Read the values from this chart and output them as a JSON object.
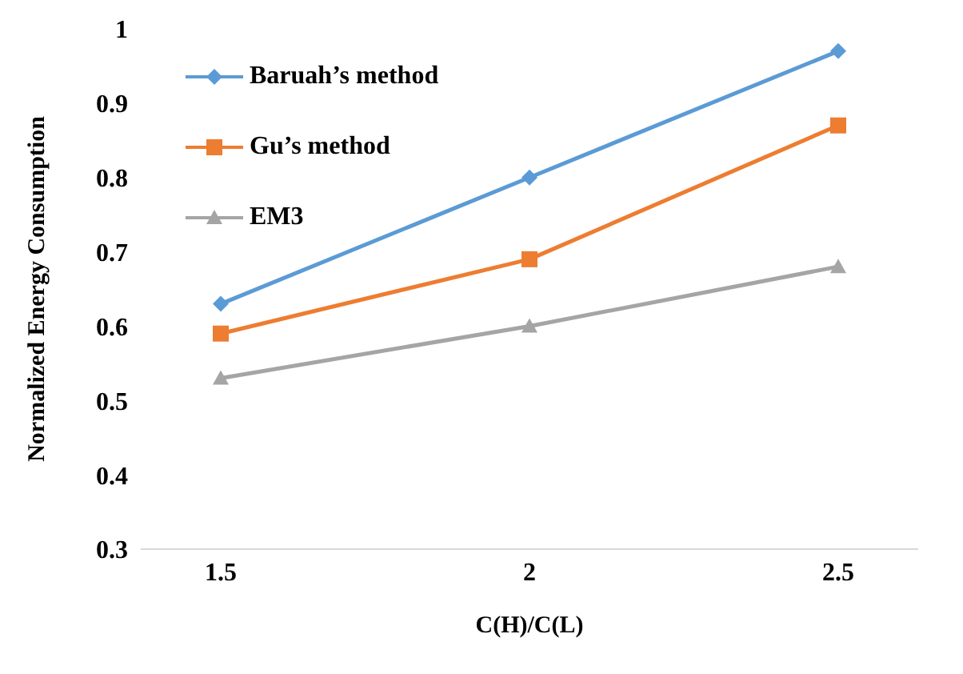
{
  "chart_data": {
    "type": "line",
    "xlabel": "C(H)/C(L)",
    "ylabel": "Normalized Energy Consumption",
    "categories": [
      "1.5",
      "2",
      "2.5"
    ],
    "series": [
      {
        "name": "Baruah’s method",
        "color": "#5b9bd5",
        "marker": "diamond",
        "values": [
          0.63,
          0.8,
          0.97
        ]
      },
      {
        "name": "Gu’s method",
        "color": "#ed7d31",
        "marker": "square",
        "values": [
          0.59,
          0.69,
          0.87
        ]
      },
      {
        "name": "EM3",
        "color": "#a5a5a5",
        "marker": "triangle",
        "values": [
          0.53,
          0.6,
          0.68
        ]
      }
    ],
    "ylim": [
      0.3,
      1
    ],
    "yticks": [
      0.3,
      0.4,
      0.5,
      0.6,
      0.7,
      0.8,
      0.9,
      1
    ],
    "grid": false,
    "legend": "top left",
    "line_style": "solid"
  }
}
